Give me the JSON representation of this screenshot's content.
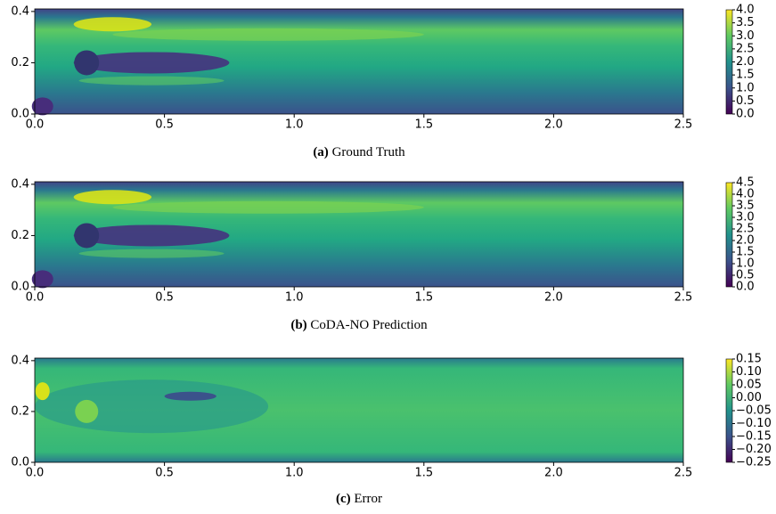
{
  "chart_data": [
    {
      "type": "contour",
      "caption_label": "(a)",
      "caption": "Ground Truth",
      "xlim": [
        0,
        2.5
      ],
      "ylim": [
        0,
        0.41
      ],
      "xticks": [
        {
          "value": 0,
          "label": "0.0"
        },
        {
          "value": 0.5,
          "label": "0.5"
        },
        {
          "value": 1,
          "label": "1.0"
        },
        {
          "value": 1.5,
          "label": "1.5"
        },
        {
          "value": 2,
          "label": "2.0"
        },
        {
          "value": 2.5,
          "label": "2.5"
        }
      ],
      "yticks": [
        {
          "value": 0,
          "label": "0.0"
        },
        {
          "value": 0.2,
          "label": "0.2"
        },
        {
          "value": 0.4,
          "label": "0.4"
        }
      ],
      "clim": [
        0,
        4.0
      ],
      "cticks": [
        {
          "value": 0,
          "label": "0.0"
        },
        {
          "value": 0.5,
          "label": "0.5"
        },
        {
          "value": 1,
          "label": "1.0"
        },
        {
          "value": 1.5,
          "label": "1.5"
        },
        {
          "value": 2,
          "label": "2.0"
        },
        {
          "value": 2.5,
          "label": "2.5"
        },
        {
          "value": 3,
          "label": "3.0"
        },
        {
          "value": 3.5,
          "label": "3.5"
        },
        {
          "value": 4,
          "label": "4.0"
        }
      ]
    },
    {
      "type": "contour",
      "caption_label": "(b)",
      "caption": "CoDA-NO Prediction",
      "xlim": [
        0,
        2.5
      ],
      "ylim": [
        0,
        0.41
      ],
      "xticks": [
        {
          "value": 0,
          "label": "0.0"
        },
        {
          "value": 0.5,
          "label": "0.5"
        },
        {
          "value": 1,
          "label": "1.0"
        },
        {
          "value": 1.5,
          "label": "1.5"
        },
        {
          "value": 2,
          "label": "2.0"
        },
        {
          "value": 2.5,
          "label": "2.5"
        }
      ],
      "yticks": [
        {
          "value": 0,
          "label": "0.0"
        },
        {
          "value": 0.2,
          "label": "0.2"
        },
        {
          "value": 0.4,
          "label": "0.4"
        }
      ],
      "clim": [
        0,
        4.5
      ],
      "cticks": [
        {
          "value": 0,
          "label": "0.0"
        },
        {
          "value": 0.5,
          "label": "0.5"
        },
        {
          "value": 1,
          "label": "1.0"
        },
        {
          "value": 1.5,
          "label": "1.5"
        },
        {
          "value": 2,
          "label": "2.0"
        },
        {
          "value": 2.5,
          "label": "2.5"
        },
        {
          "value": 3,
          "label": "3.0"
        },
        {
          "value": 3.5,
          "label": "3.5"
        },
        {
          "value": 4,
          "label": "4.0"
        },
        {
          "value": 4.5,
          "label": "4.5"
        }
      ]
    },
    {
      "type": "error",
      "caption_label": "(c)",
      "caption": "Error",
      "xlim": [
        0,
        2.5
      ],
      "ylim": [
        0,
        0.41
      ],
      "xticks": [
        {
          "value": 0,
          "label": "0.0"
        },
        {
          "value": 0.5,
          "label": "0.5"
        },
        {
          "value": 1,
          "label": "1.0"
        },
        {
          "value": 1.5,
          "label": "1.5"
        },
        {
          "value": 2,
          "label": "2.0"
        },
        {
          "value": 2.5,
          "label": "2.5"
        }
      ],
      "yticks": [
        {
          "value": 0,
          "label": "0.0"
        },
        {
          "value": 0.2,
          "label": "0.2"
        },
        {
          "value": 0.4,
          "label": "0.4"
        }
      ],
      "clim": [
        -0.25,
        0.15
      ],
      "cticks": [
        {
          "value": -0.25,
          "label": "−0.25"
        },
        {
          "value": -0.2,
          "label": "−0.20"
        },
        {
          "value": -0.15,
          "label": "−0.15"
        },
        {
          "value": -0.1,
          "label": "−0.10"
        },
        {
          "value": -0.05,
          "label": "−0.05"
        },
        {
          "value": 0,
          "label": "0.00"
        },
        {
          "value": 0.05,
          "label": "0.05"
        },
        {
          "value": 0.1,
          "label": "0.10"
        },
        {
          "value": 0.15,
          "label": "0.15"
        }
      ]
    }
  ]
}
